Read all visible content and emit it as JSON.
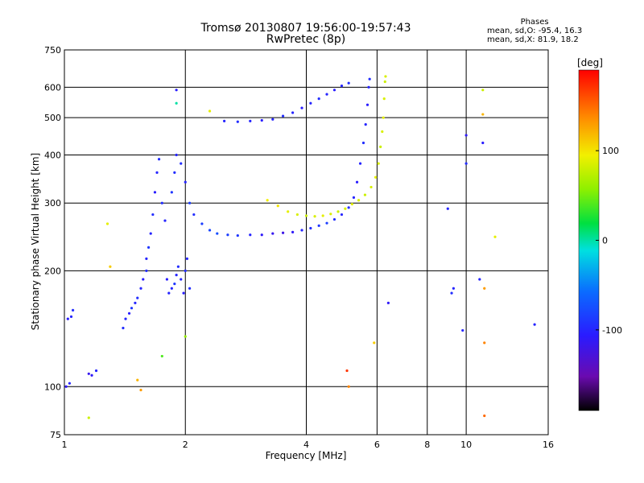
{
  "header": {
    "title_line1": "Tromsø 20130807 19:56:00-19:57:43",
    "title_line2": "RwPretec (8p)"
  },
  "phases": {
    "title": "Phases",
    "line_o": "mean, sd,O: -95.4, 16.3",
    "line_x": "mean, sd,X:  81.9, 18.2"
  },
  "colorbar": {
    "label": "[deg]",
    "range": [
      -190,
      190
    ],
    "ticks": [
      {
        "value": 100,
        "label": "100"
      },
      {
        "value": 0,
        "label": "0"
      },
      {
        "value": -100,
        "label": "-100"
      }
    ]
  },
  "chart_data": {
    "type": "scatter",
    "xlabel": "Frequency [MHz]",
    "ylabel": "Stationary phase Virtual Height [km]",
    "xscale": "log",
    "yscale": "log",
    "xlim": [
      1,
      16
    ],
    "ylim": [
      75,
      750
    ],
    "grid": true,
    "x_ticks": [
      {
        "value": 1,
        "label": "1"
      },
      {
        "value": 2,
        "label": "2"
      },
      {
        "value": 4,
        "label": "4"
      },
      {
        "value": 6,
        "label": "6"
      },
      {
        "value": 8,
        "label": "8"
      },
      {
        "value": 10,
        "label": "10"
      },
      {
        "value": 16,
        "label": "16"
      }
    ],
    "y_ticks": [
      {
        "value": 75,
        "label": "75"
      },
      {
        "value": 100,
        "label": "100"
      },
      {
        "value": 200,
        "label": "200"
      },
      {
        "value": 300,
        "label": "300"
      },
      {
        "value": 400,
        "label": "400"
      },
      {
        "value": 500,
        "label": "500"
      },
      {
        "value": 600,
        "label": "600"
      },
      {
        "value": 750,
        "label": "750"
      }
    ],
    "series": [
      {
        "points": [
          {
            "x": 1.02,
            "y": 150,
            "phase": -105
          },
          {
            "x": 1.04,
            "y": 152,
            "phase": -100
          },
          {
            "x": 1.05,
            "y": 158,
            "phase": -95
          },
          {
            "x": 1.01,
            "y": 100,
            "phase": -110
          },
          {
            "x": 1.03,
            "y": 102,
            "phase": -100
          },
          {
            "x": 1.15,
            "y": 108,
            "phase": -115
          },
          {
            "x": 1.17,
            "y": 107,
            "phase": -110
          },
          {
            "x": 1.4,
            "y": 142,
            "phase": -95
          },
          {
            "x": 1.42,
            "y": 150,
            "phase": -100
          },
          {
            "x": 1.45,
            "y": 155,
            "phase": -105
          },
          {
            "x": 1.47,
            "y": 160,
            "phase": -90
          },
          {
            "x": 1.5,
            "y": 165,
            "phase": -100
          },
          {
            "x": 1.52,
            "y": 170,
            "phase": -95
          },
          {
            "x": 1.55,
            "y": 180,
            "phase": -100
          },
          {
            "x": 1.57,
            "y": 190,
            "phase": -105
          },
          {
            "x": 1.6,
            "y": 200,
            "phase": -95
          },
          {
            "x": 1.6,
            "y": 215,
            "phase": -100
          },
          {
            "x": 1.62,
            "y": 230,
            "phase": -90
          },
          {
            "x": 1.64,
            "y": 250,
            "phase": -100
          },
          {
            "x": 1.66,
            "y": 280,
            "phase": -95
          },
          {
            "x": 1.68,
            "y": 320,
            "phase": -105
          },
          {
            "x": 1.7,
            "y": 360,
            "phase": -100
          },
          {
            "x": 1.72,
            "y": 390,
            "phase": -95
          },
          {
            "x": 1.75,
            "y": 300,
            "phase": -95
          },
          {
            "x": 1.78,
            "y": 270,
            "phase": -100
          },
          {
            "x": 1.8,
            "y": 190,
            "phase": -105
          },
          {
            "x": 1.82,
            "y": 175,
            "phase": -100
          },
          {
            "x": 1.85,
            "y": 180,
            "phase": -100
          },
          {
            "x": 1.88,
            "y": 185,
            "phase": -90
          },
          {
            "x": 1.9,
            "y": 195,
            "phase": -100
          },
          {
            "x": 1.92,
            "y": 205,
            "phase": -95
          },
          {
            "x": 1.95,
            "y": 190,
            "phase": -100
          },
          {
            "x": 1.98,
            "y": 175,
            "phase": -105
          },
          {
            "x": 2.0,
            "y": 200,
            "phase": -95
          },
          {
            "x": 2.02,
            "y": 215,
            "phase": -100
          },
          {
            "x": 2.05,
            "y": 180,
            "phase": -95
          },
          {
            "x": 1.85,
            "y": 320,
            "phase": -90
          },
          {
            "x": 1.88,
            "y": 360,
            "phase": -95
          },
          {
            "x": 1.9,
            "y": 400,
            "phase": -100
          },
          {
            "x": 1.95,
            "y": 380,
            "phase": -95
          },
          {
            "x": 2.0,
            "y": 340,
            "phase": -100
          },
          {
            "x": 2.05,
            "y": 300,
            "phase": -85
          },
          {
            "x": 2.1,
            "y": 280,
            "phase": -95
          },
          {
            "x": 2.2,
            "y": 265,
            "phase": -85
          },
          {
            "x": 2.3,
            "y": 255,
            "phase": -80
          },
          {
            "x": 2.4,
            "y": 250,
            "phase": -75
          },
          {
            "x": 2.55,
            "y": 248,
            "phase": -85
          },
          {
            "x": 2.7,
            "y": 247,
            "phase": -90
          },
          {
            "x": 2.9,
            "y": 248,
            "phase": -100
          },
          {
            "x": 3.1,
            "y": 248,
            "phase": -110
          },
          {
            "x": 3.3,
            "y": 250,
            "phase": -115
          },
          {
            "x": 3.5,
            "y": 251,
            "phase": -120
          },
          {
            "x": 3.7,
            "y": 252,
            "phase": -110
          },
          {
            "x": 3.9,
            "y": 255,
            "phase": -100
          },
          {
            "x": 4.1,
            "y": 258,
            "phase": -95
          },
          {
            "x": 4.3,
            "y": 262,
            "phase": -90
          },
          {
            "x": 4.5,
            "y": 266,
            "phase": -85
          },
          {
            "x": 4.7,
            "y": 272,
            "phase": -95
          },
          {
            "x": 4.9,
            "y": 280,
            "phase": -100
          },
          {
            "x": 5.1,
            "y": 292,
            "phase": -95
          },
          {
            "x": 5.25,
            "y": 310,
            "phase": -100
          },
          {
            "x": 5.35,
            "y": 340,
            "phase": -105
          },
          {
            "x": 5.45,
            "y": 380,
            "phase": -100
          },
          {
            "x": 5.55,
            "y": 430,
            "phase": -95
          },
          {
            "x": 5.62,
            "y": 480,
            "phase": -100
          },
          {
            "x": 5.68,
            "y": 540,
            "phase": -105
          },
          {
            "x": 5.72,
            "y": 600,
            "phase": -100
          },
          {
            "x": 5.75,
            "y": 630,
            "phase": -95
          },
          {
            "x": 2.5,
            "y": 490,
            "phase": -100
          },
          {
            "x": 2.7,
            "y": 488,
            "phase": -95
          },
          {
            "x": 2.9,
            "y": 490,
            "phase": -100
          },
          {
            "x": 3.1,
            "y": 492,
            "phase": -105
          },
          {
            "x": 3.3,
            "y": 495,
            "phase": -100
          },
          {
            "x": 3.5,
            "y": 505,
            "phase": -95
          },
          {
            "x": 3.7,
            "y": 515,
            "phase": -100
          },
          {
            "x": 3.9,
            "y": 530,
            "phase": -105
          },
          {
            "x": 4.1,
            "y": 545,
            "phase": -100
          },
          {
            "x": 4.3,
            "y": 560,
            "phase": -95
          },
          {
            "x": 4.5,
            "y": 575,
            "phase": -100
          },
          {
            "x": 4.7,
            "y": 590,
            "phase": -105
          },
          {
            "x": 4.9,
            "y": 605,
            "phase": -100
          },
          {
            "x": 5.1,
            "y": 615,
            "phase": -95
          },
          {
            "x": 3.2,
            "y": 305,
            "phase": 95
          },
          {
            "x": 3.4,
            "y": 295,
            "phase": 100
          },
          {
            "x": 3.6,
            "y": 285,
            "phase": 90
          },
          {
            "x": 3.8,
            "y": 280,
            "phase": 85
          },
          {
            "x": 4.0,
            "y": 278,
            "phase": 80
          },
          {
            "x": 4.2,
            "y": 277,
            "phase": 85
          },
          {
            "x": 4.4,
            "y": 278,
            "phase": 90
          },
          {
            "x": 4.6,
            "y": 281,
            "phase": 85
          },
          {
            "x": 4.8,
            "y": 285,
            "phase": 80
          },
          {
            "x": 5.0,
            "y": 290,
            "phase": 85
          },
          {
            "x": 5.2,
            "y": 298,
            "phase": 90
          },
          {
            "x": 5.4,
            "y": 305,
            "phase": 85
          },
          {
            "x": 5.6,
            "y": 315,
            "phase": 80
          },
          {
            "x": 5.8,
            "y": 330,
            "phase": 85
          },
          {
            "x": 5.95,
            "y": 350,
            "phase": 90
          },
          {
            "x": 6.05,
            "y": 380,
            "phase": 85
          },
          {
            "x": 6.12,
            "y": 420,
            "phase": 80
          },
          {
            "x": 6.18,
            "y": 460,
            "phase": 85
          },
          {
            "x": 6.22,
            "y": 500,
            "phase": 90
          },
          {
            "x": 6.25,
            "y": 560,
            "phase": 85
          },
          {
            "x": 6.28,
            "y": 620,
            "phase": 80
          },
          {
            "x": 6.3,
            "y": 640,
            "phase": 85
          },
          {
            "x": 9.0,
            "y": 290,
            "phase": -100
          },
          {
            "x": 9.2,
            "y": 175,
            "phase": -95
          },
          {
            "x": 9.3,
            "y": 180,
            "phase": -100
          },
          {
            "x": 9.8,
            "y": 140,
            "phase": -100
          },
          {
            "x": 10.0,
            "y": 380,
            "phase": -95
          },
          {
            "x": 10.0,
            "y": 450,
            "phase": -110
          },
          {
            "x": 10.8,
            "y": 190,
            "phase": -100
          },
          {
            "x": 11.0,
            "y": 430,
            "phase": -105
          },
          {
            "x": 14.8,
            "y": 145,
            "phase": -100
          },
          {
            "x": 11.0,
            "y": 590,
            "phase": 80
          },
          {
            "x": 11.0,
            "y": 510,
            "phase": 120
          },
          {
            "x": 11.1,
            "y": 180,
            "phase": 130
          },
          {
            "x": 11.1,
            "y": 130,
            "phase": 140
          },
          {
            "x": 11.1,
            "y": 84,
            "phase": 150
          },
          {
            "x": 11.8,
            "y": 245,
            "phase": 90
          },
          {
            "x": 1.2,
            "y": 110,
            "phase": -100
          },
          {
            "x": 1.28,
            "y": 265,
            "phase": 90
          },
          {
            "x": 1.3,
            "y": 205,
            "phase": 110
          },
          {
            "x": 1.15,
            "y": 83,
            "phase": 80
          },
          {
            "x": 1.52,
            "y": 104,
            "phase": 120
          },
          {
            "x": 1.55,
            "y": 98,
            "phase": 130
          },
          {
            "x": 5.05,
            "y": 110,
            "phase": 170
          },
          {
            "x": 5.9,
            "y": 130,
            "phase": 110
          },
          {
            "x": 5.1,
            "y": 100,
            "phase": 140
          },
          {
            "x": 6.4,
            "y": 165,
            "phase": -110
          },
          {
            "x": 1.9,
            "y": 590,
            "phase": -105
          },
          {
            "x": 1.9,
            "y": 545,
            "phase": 0
          },
          {
            "x": 2.3,
            "y": 520,
            "phase": 90
          },
          {
            "x": 1.75,
            "y": 120,
            "phase": 40
          },
          {
            "x": 2.0,
            "y": 135,
            "phase": 60
          }
        ]
      }
    ]
  }
}
